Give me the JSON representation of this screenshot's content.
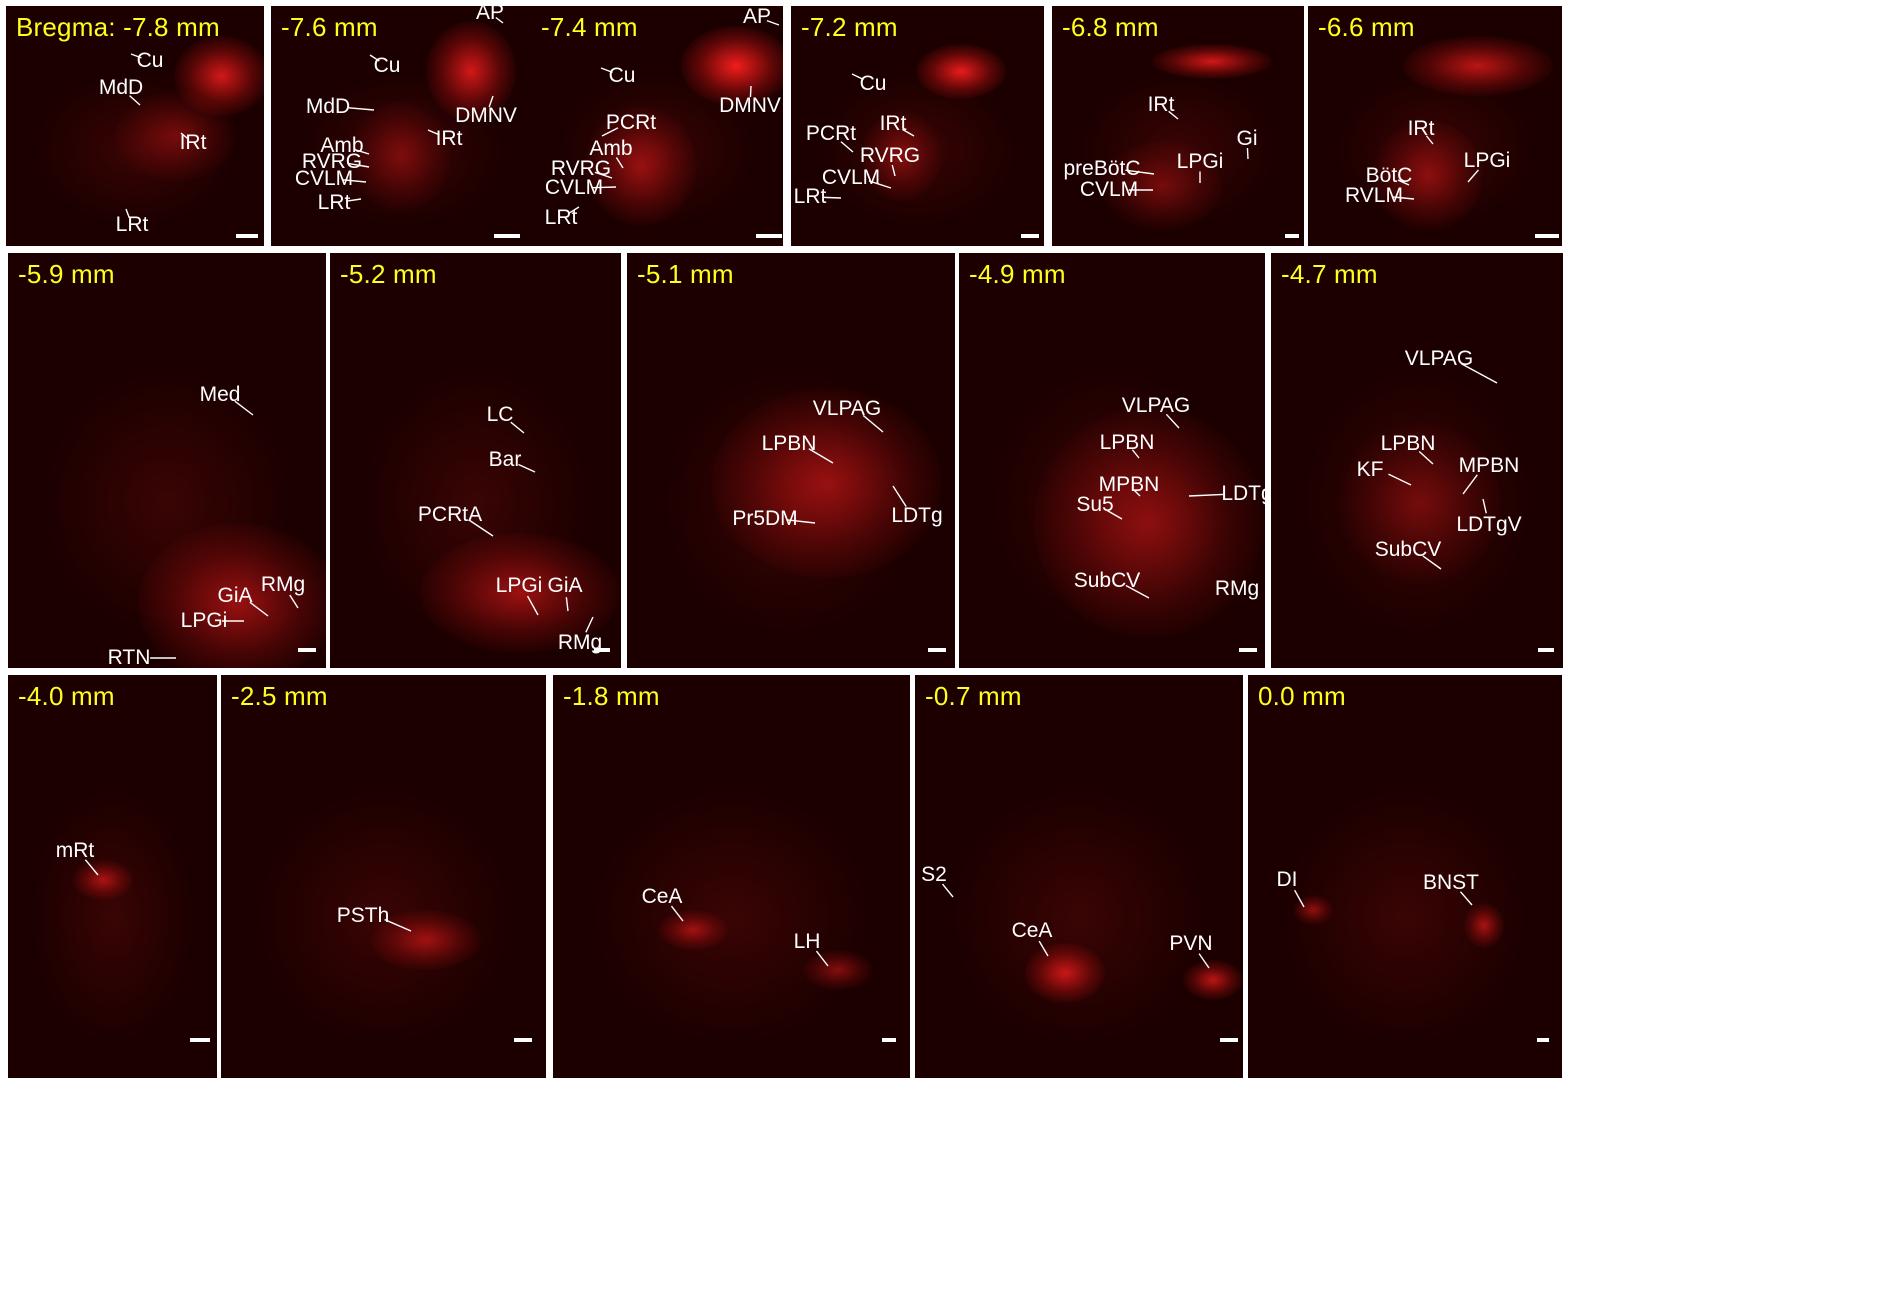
{
  "background_color": "#ffffff",
  "colors": {
    "tissue": "#1c0000",
    "label_bregma": "#ffff1e",
    "label_region": "#ffffff",
    "signal": "#ff1e1e"
  },
  "panels": [
    {
      "bregma": "Bregma: -7.8 mm",
      "labels": [
        "Cu",
        "MdD",
        "IRt",
        "LRt"
      ]
    },
    {
      "bregma": "-7.6 mm",
      "labels": [
        "AP",
        "Cu",
        "MdD",
        "IRt",
        "DMNV",
        "Amb",
        "RVRG",
        "CVLM",
        "LRt"
      ]
    },
    {
      "bregma": "-7.4 mm",
      "labels": [
        "AP",
        "Cu",
        "DMNV",
        "PCRt",
        "Amb",
        "RVRG",
        "CVLM",
        "LRt"
      ]
    },
    {
      "bregma": "-7.2 mm",
      "labels": [
        "Cu",
        "PCRt",
        "IRt",
        "RVRG",
        "CVLM",
        "LRt"
      ]
    },
    {
      "bregma": "-6.8 mm",
      "labels": [
        "IRt",
        "Gi",
        "preBötC",
        "LPGi",
        "CVLM"
      ]
    },
    {
      "bregma": "-6.6 mm",
      "labels": [
        "IRt",
        "LPGi",
        "BötC",
        "RVLM"
      ]
    },
    {
      "bregma": "-5.9 mm",
      "labels": [
        "Med",
        "RMg",
        "GiA",
        "LPGi",
        "RTN"
      ]
    },
    {
      "bregma": "-5.2 mm",
      "labels": [
        "LC",
        "Bar",
        "PCRtA",
        "LPGi",
        "GiA",
        "RMg"
      ]
    },
    {
      "bregma": "-5.1 mm",
      "labels": [
        "VLPAG",
        "LPBN",
        "LDTg",
        "Pr5DM"
      ]
    },
    {
      "bregma": "-4.9 mm",
      "labels": [
        "VLPAG",
        "LPBN",
        "MPBN",
        "LDTg",
        "Su5",
        "SubCV",
        "RMg"
      ]
    },
    {
      "bregma": "-4.7 mm",
      "labels": [
        "VLPAG",
        "LPBN",
        "KF",
        "MPBN",
        "LDTgV",
        "SubCV"
      ]
    },
    {
      "bregma": "-4.0 mm",
      "labels": [
        "mRt"
      ]
    },
    {
      "bregma": "-2.5 mm",
      "labels": [
        "PSTh"
      ]
    },
    {
      "bregma": "-1.8 mm",
      "labels": [
        "CeA",
        "LH"
      ]
    },
    {
      "bregma": "-0.7 mm",
      "labels": [
        "S2",
        "CeA",
        "PVN"
      ]
    },
    {
      "bregma": "0.0 mm",
      "labels": [
        "DI",
        "BNST"
      ]
    }
  ]
}
